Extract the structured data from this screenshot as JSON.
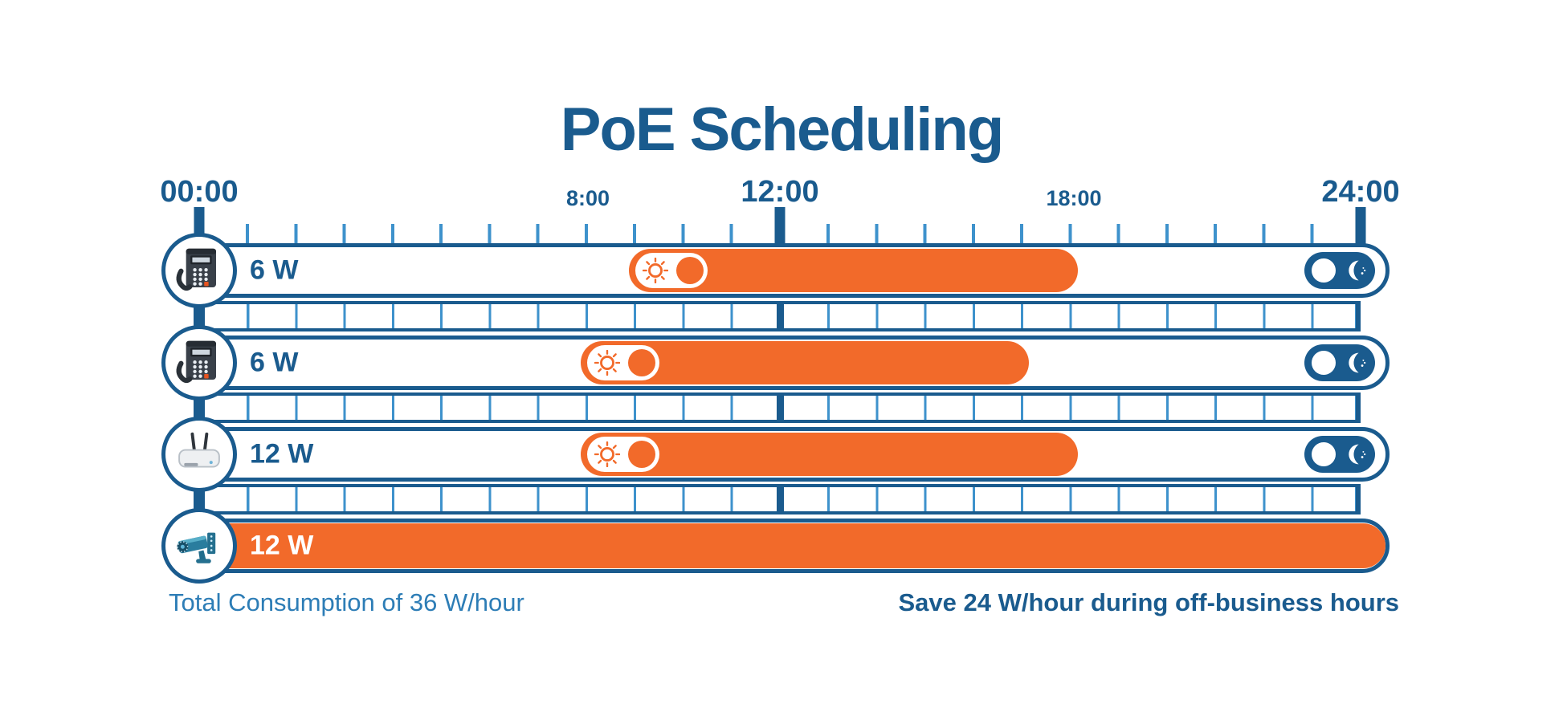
{
  "title": "PoE Scheduling",
  "timeline": {
    "hours_total": 24,
    "major_ticks": [
      {
        "hour": 0,
        "label": "00:00"
      },
      {
        "hour": 12,
        "label": "12:00"
      },
      {
        "hour": 24,
        "label": "24:00"
      }
    ],
    "minor_tick_labels": [
      {
        "hour": 8,
        "label": "8:00"
      },
      {
        "hour": 18,
        "label": "18:00"
      }
    ]
  },
  "rows": [
    {
      "device": "ip-phone",
      "power_label": "6 W",
      "start_hour": 9,
      "end_hour": 18,
      "always_on": false,
      "day_toggle": true,
      "night_toggle": true
    },
    {
      "device": "ip-phone",
      "power_label": "6 W",
      "start_hour": 8,
      "end_hour": 17,
      "always_on": false,
      "day_toggle": true,
      "night_toggle": true
    },
    {
      "device": "wireless-access-point",
      "power_label": "12 W",
      "start_hour": 8,
      "end_hour": 18,
      "always_on": false,
      "day_toggle": true,
      "night_toggle": true
    },
    {
      "device": "ip-camera",
      "power_label": "12 W",
      "start_hour": 0,
      "end_hour": 24,
      "always_on": true,
      "day_toggle": false,
      "night_toggle": false
    }
  ],
  "footer": {
    "left_note": "Total Consumption of 36 W/hour",
    "right_note": "Save 24 W/hour during off-business hours"
  },
  "colors": {
    "dark_blue": "#1a5b8e",
    "light_blue": "#3e92cc",
    "orange": "#f26a2a",
    "footer_blue": "#2d7db6"
  },
  "chart_data": {
    "type": "bar",
    "subtype": "horizontal-schedule-gantt",
    "title": "PoE Scheduling",
    "x_axis": {
      "unit": "hours",
      "range": [
        0,
        24
      ],
      "tick_hours": [
        0,
        8,
        12,
        18,
        24
      ],
      "tick_labels": [
        "00:00",
        "8:00",
        "12:00",
        "18:00",
        "24:00"
      ],
      "grid": "hourly"
    },
    "series": [
      {
        "name": "IP phone 1",
        "power_w": 6,
        "on_start_hour": 9,
        "on_end_hour": 18
      },
      {
        "name": "IP phone 2",
        "power_w": 6,
        "on_start_hour": 8,
        "on_end_hour": 17
      },
      {
        "name": "Wireless access point",
        "power_w": 12,
        "on_start_hour": 8,
        "on_end_hour": 18
      },
      {
        "name": "IP camera",
        "power_w": 12,
        "on_start_hour": 0,
        "on_end_hour": 24
      }
    ],
    "bar_color": "#f26a2a",
    "annotations": [
      "Total Consumption of 36 W/hour",
      "Save 24 W/hour during off-business hours"
    ]
  }
}
